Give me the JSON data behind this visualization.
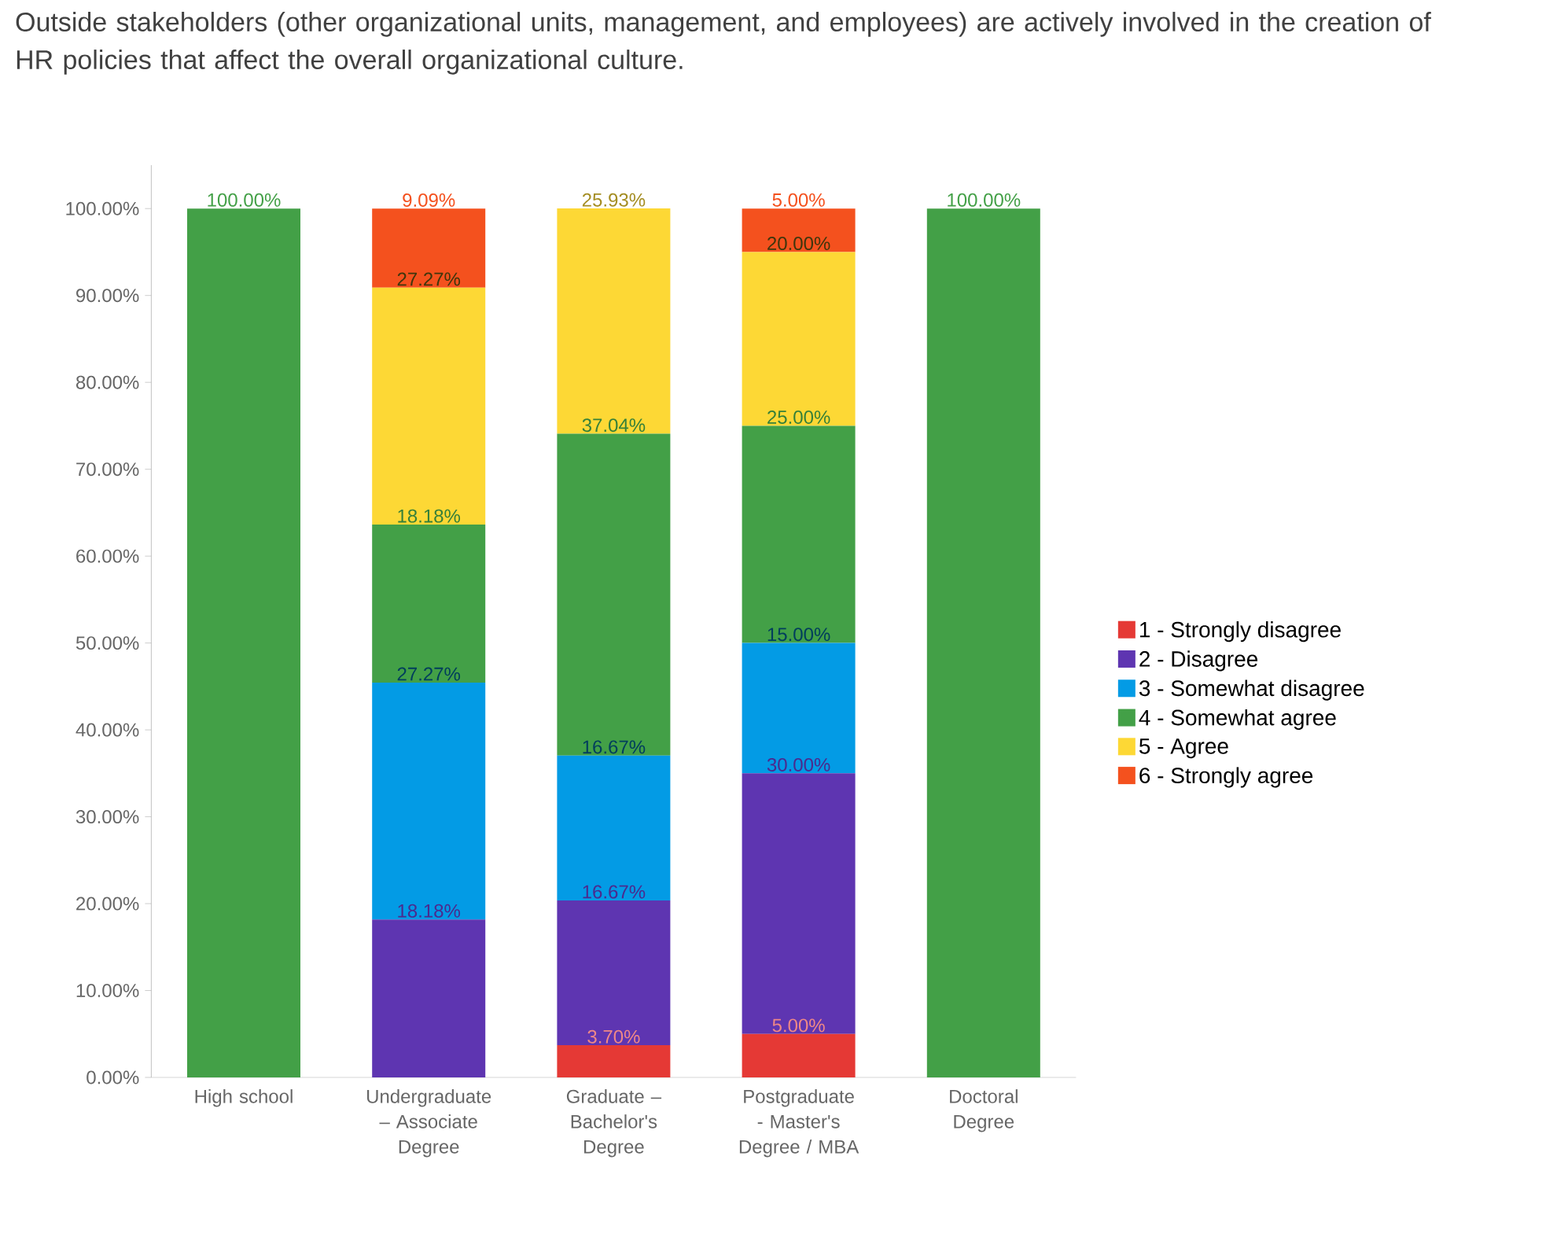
{
  "chart_data": {
    "type": "bar",
    "stacked": true,
    "title": "Outside stakeholders (other organizational units, management, and employees) are actively involved in the creation of HR policies that affect the overall organizational culture.",
    "categories": [
      "High school",
      "Undergraduate – Associate Degree",
      "Graduate – Bachelor's Degree",
      "Postgraduate - Master's Degree / MBA",
      "Doctoral Degree"
    ],
    "series": [
      {
        "name": "1 - Strongly disagree",
        "color": "#e53935",
        "values": [
          0,
          0,
          3.7,
          5.0,
          0
        ],
        "value_labels": [
          null,
          null,
          "3.70%",
          "5.00%",
          null
        ]
      },
      {
        "name": "2 - Disagree",
        "color": "#5e35b1",
        "values": [
          0,
          18.18,
          16.67,
          30.0,
          0
        ],
        "value_labels": [
          null,
          "18.18%",
          "16.67%",
          "30.00%",
          null
        ]
      },
      {
        "name": "3 - Somewhat disagree",
        "color": "#039be5",
        "values": [
          0,
          27.27,
          16.67,
          15.0,
          0
        ],
        "value_labels": [
          null,
          "27.27%",
          "16.67%",
          "15.00%",
          null
        ]
      },
      {
        "name": "4 - Somewhat agree",
        "color": "#43a047",
        "values": [
          100.0,
          18.18,
          37.04,
          25.0,
          100.0
        ],
        "value_labels": [
          "100.00%",
          "18.18%",
          "37.04%",
          "25.00%",
          "100.00%"
        ]
      },
      {
        "name": "5 - Agree",
        "color": "#fdd835",
        "values": [
          0,
          27.27,
          25.93,
          20.0,
          0
        ],
        "value_labels": [
          null,
          "27.27%",
          "25.93%",
          "20.00%",
          null
        ]
      },
      {
        "name": "6 - Strongly agree",
        "color": "#f4511e",
        "values": [
          0,
          9.09,
          0,
          5.0,
          0
        ],
        "value_labels": [
          null,
          "9.09%",
          null,
          "5.00%",
          null
        ]
      }
    ],
    "ylim": [
      0,
      105
    ],
    "yticks": [
      {
        "value": 0,
        "label": "0.00%"
      },
      {
        "value": 10,
        "label": "10.00%"
      },
      {
        "value": 20,
        "label": "20.00%"
      },
      {
        "value": 30,
        "label": "30.00%"
      },
      {
        "value": 40,
        "label": "40.00%"
      },
      {
        "value": 50,
        "label": "50.00%"
      },
      {
        "value": 60,
        "label": "60.00%"
      },
      {
        "value": 70,
        "label": "70.00%"
      },
      {
        "value": 80,
        "label": "80.00%"
      },
      {
        "value": 90,
        "label": "90.00%"
      },
      {
        "value": 100,
        "label": "100.00%"
      }
    ],
    "legend": "right"
  }
}
